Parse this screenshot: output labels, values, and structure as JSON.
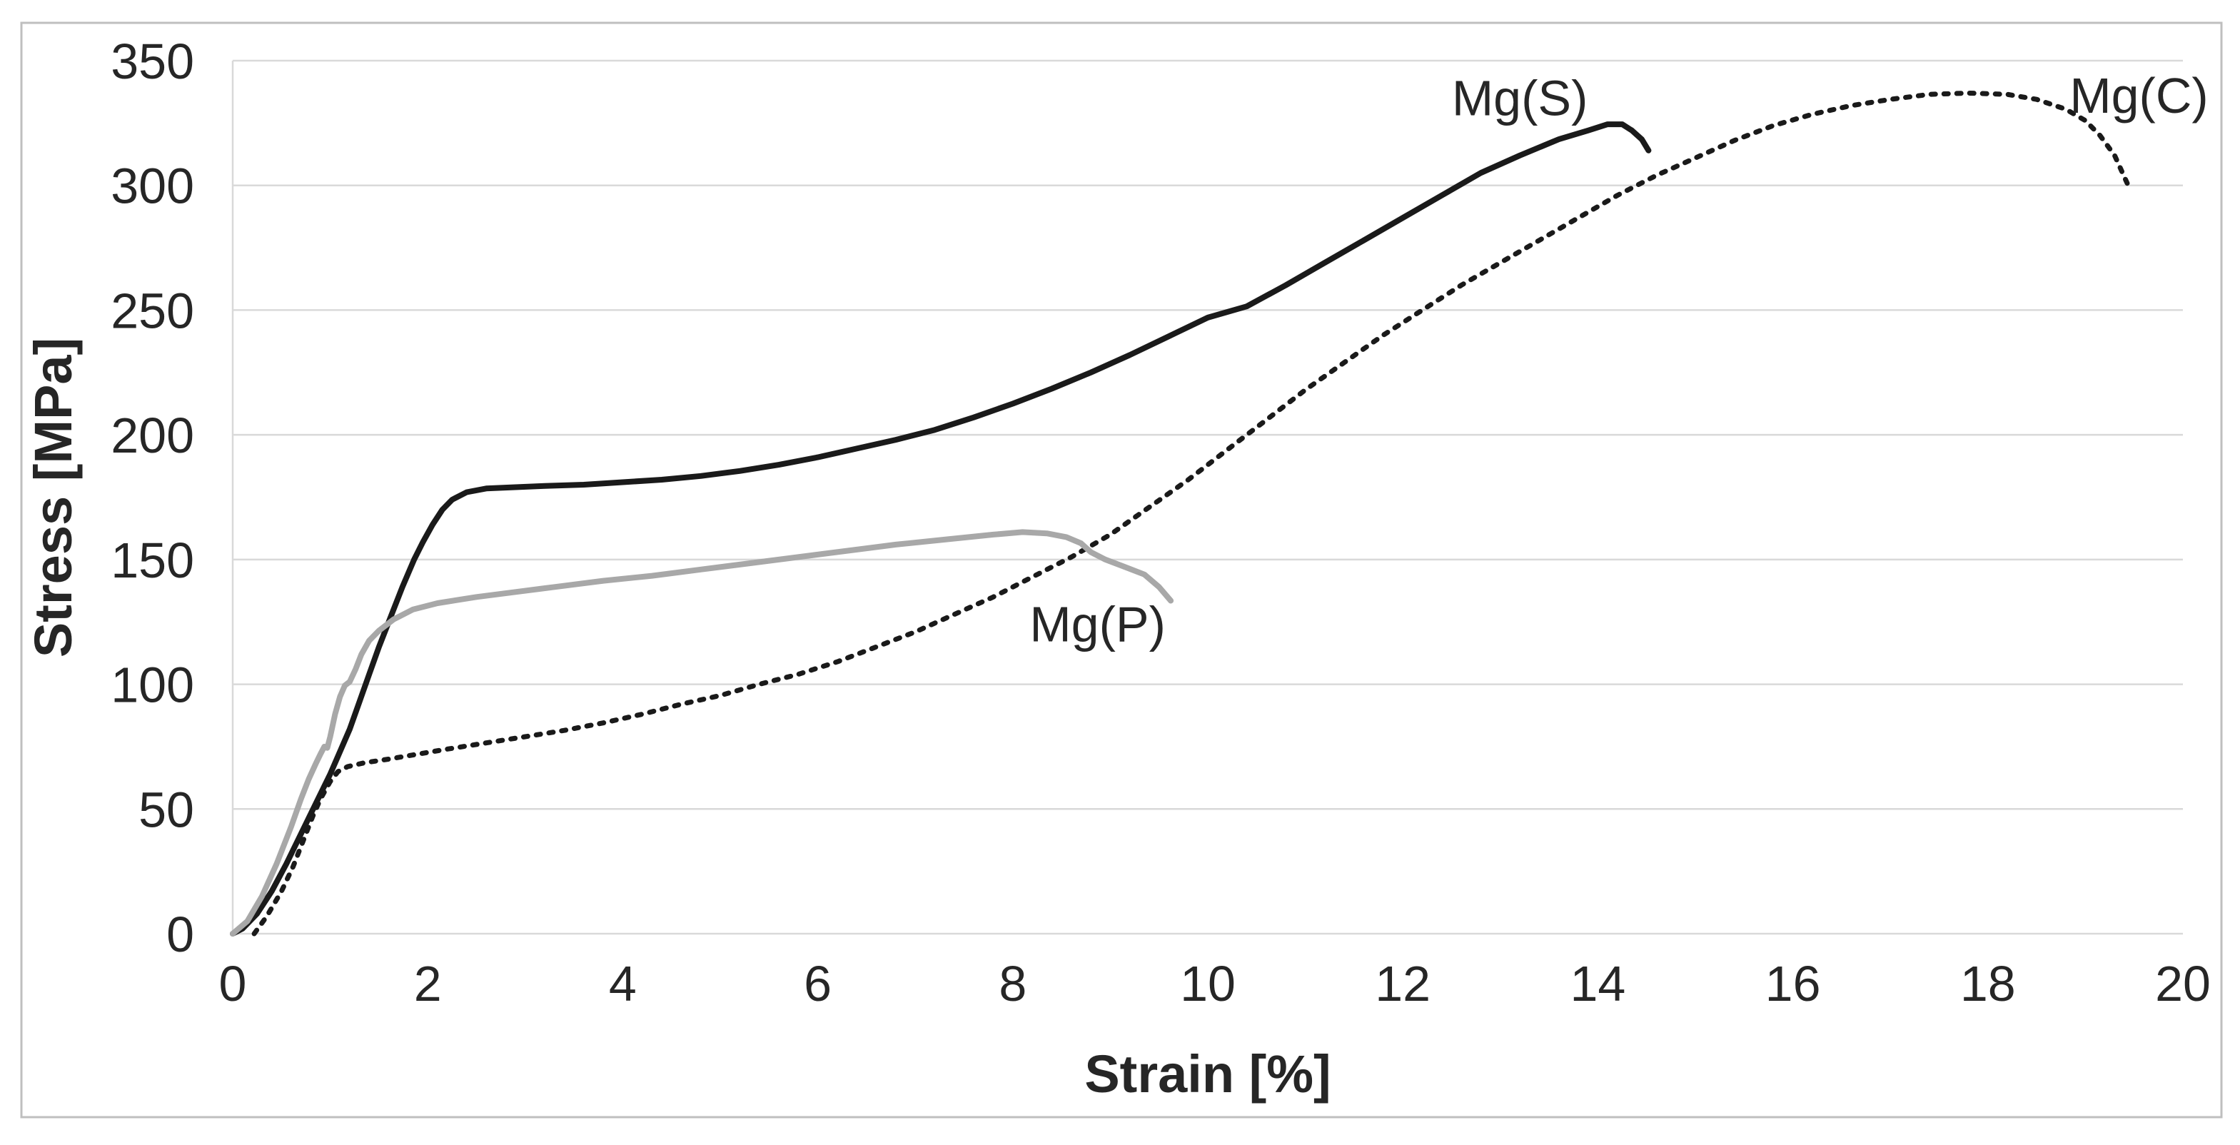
{
  "figure": {
    "background": "#ffffff",
    "border_color": "#bfbfbf",
    "gridline_color": "#d9d9d9",
    "text_color": "#262626"
  },
  "chart_data": {
    "type": "line",
    "title": "",
    "xlabel": "Strain [%]",
    "ylabel": "Stress [MPa]",
    "xlim": [
      0,
      20
    ],
    "ylim": [
      0,
      350
    ],
    "x_ticks": [
      0,
      2,
      4,
      6,
      8,
      10,
      12,
      14,
      16,
      18,
      20
    ],
    "y_ticks": [
      0,
      50,
      100,
      150,
      200,
      250,
      300,
      350
    ],
    "grid": "horizontal",
    "legend_position": "inline-labels",
    "series": [
      {
        "name": "Mg(S)",
        "style": "solid",
        "color": "#1a1a1a",
        "stroke_width": 8,
        "label_pos": [
          13.2,
          335
        ],
        "points": [
          [
            0,
            0
          ],
          [
            0.1,
            2
          ],
          [
            0.25,
            8
          ],
          [
            0.4,
            17
          ],
          [
            0.55,
            28
          ],
          [
            0.7,
            40
          ],
          [
            0.85,
            52
          ],
          [
            1.0,
            64
          ],
          [
            1.1,
            73
          ],
          [
            1.2,
            82
          ],
          [
            1.3,
            93
          ],
          [
            1.4,
            104
          ],
          [
            1.5,
            115
          ],
          [
            1.62,
            127
          ],
          [
            1.74,
            139
          ],
          [
            1.86,
            150
          ],
          [
            1.95,
            157
          ],
          [
            2.05,
            164
          ],
          [
            2.15,
            170
          ],
          [
            2.25,
            174
          ],
          [
            2.4,
            177
          ],
          [
            2.6,
            178.5
          ],
          [
            2.9,
            179
          ],
          [
            3.2,
            179.5
          ],
          [
            3.6,
            180
          ],
          [
            4.0,
            181
          ],
          [
            4.4,
            182
          ],
          [
            4.8,
            183.5
          ],
          [
            5.2,
            185.5
          ],
          [
            5.6,
            188
          ],
          [
            6.0,
            191
          ],
          [
            6.4,
            194.5
          ],
          [
            6.8,
            198
          ],
          [
            7.2,
            202
          ],
          [
            7.6,
            207
          ],
          [
            8.0,
            212.5
          ],
          [
            8.4,
            218.5
          ],
          [
            8.8,
            225
          ],
          [
            9.2,
            232
          ],
          [
            9.6,
            239.5
          ],
          [
            10.0,
            247
          ],
          [
            10.4,
            251.5
          ],
          [
            10.8,
            260
          ],
          [
            11.2,
            269
          ],
          [
            11.6,
            278
          ],
          [
            12.0,
            287
          ],
          [
            12.4,
            296
          ],
          [
            12.8,
            305
          ],
          [
            13.2,
            312
          ],
          [
            13.6,
            318.5
          ],
          [
            13.9,
            322
          ],
          [
            14.1,
            324.5
          ],
          [
            14.25,
            324.5
          ],
          [
            14.35,
            322
          ],
          [
            14.45,
            318.5
          ],
          [
            14.52,
            314
          ]
        ]
      },
      {
        "name": "Mg(C)",
        "style": "dotted",
        "color": "#1a1a1a",
        "stroke_width": 7,
        "label_pos": [
          19.55,
          336
        ],
        "points": [
          [
            0.22,
            0
          ],
          [
            0.35,
            7
          ],
          [
            0.5,
            17
          ],
          [
            0.62,
            27
          ],
          [
            0.72,
            37
          ],
          [
            0.82,
            47
          ],
          [
            0.9,
            54
          ],
          [
            1.0,
            61
          ],
          [
            1.08,
            65
          ],
          [
            1.18,
            67
          ],
          [
            1.35,
            68.5
          ],
          [
            1.6,
            70
          ],
          [
            1.9,
            72
          ],
          [
            2.2,
            74
          ],
          [
            2.6,
            76.5
          ],
          [
            3.0,
            79
          ],
          [
            3.4,
            81.5
          ],
          [
            3.8,
            84.5
          ],
          [
            4.2,
            88
          ],
          [
            4.6,
            92
          ],
          [
            5.0,
            95.5
          ],
          [
            5.4,
            100
          ],
          [
            5.8,
            104
          ],
          [
            6.2,
            109
          ],
          [
            6.6,
            115
          ],
          [
            7.0,
            121
          ],
          [
            7.4,
            128
          ],
          [
            7.8,
            135
          ],
          [
            8.2,
            143
          ],
          [
            8.6,
            151
          ],
          [
            9.0,
            160
          ],
          [
            9.4,
            171
          ],
          [
            9.8,
            182
          ],
          [
            10.2,
            194
          ],
          [
            10.6,
            206
          ],
          [
            11.0,
            218
          ],
          [
            11.4,
            229
          ],
          [
            11.8,
            240
          ],
          [
            12.2,
            250
          ],
          [
            12.6,
            260
          ],
          [
            13.0,
            269
          ],
          [
            13.4,
            278
          ],
          [
            13.8,
            287
          ],
          [
            14.2,
            296
          ],
          [
            14.6,
            304
          ],
          [
            15.0,
            311
          ],
          [
            15.4,
            318
          ],
          [
            15.8,
            324
          ],
          [
            16.2,
            328.5
          ],
          [
            16.6,
            332
          ],
          [
            17.0,
            334.5
          ],
          [
            17.4,
            336.5
          ],
          [
            17.8,
            337
          ],
          [
            18.2,
            336.5
          ],
          [
            18.5,
            334.5
          ],
          [
            18.8,
            330.5
          ],
          [
            19.0,
            326
          ],
          [
            19.15,
            320
          ],
          [
            19.3,
            312
          ],
          [
            19.45,
            299
          ]
        ]
      },
      {
        "name": "Mg(P)",
        "style": "solid",
        "color": "#a8a8a8",
        "stroke_width": 8,
        "label_pos": [
          8.87,
          124
        ],
        "points": [
          [
            0,
            0
          ],
          [
            0.15,
            5
          ],
          [
            0.3,
            15
          ],
          [
            0.45,
            28
          ],
          [
            0.6,
            43
          ],
          [
            0.7,
            54
          ],
          [
            0.78,
            62
          ],
          [
            0.85,
            68
          ],
          [
            0.9,
            72
          ],
          [
            0.94,
            75
          ],
          [
            0.97,
            74.5
          ],
          [
            1.0,
            79
          ],
          [
            1.05,
            88
          ],
          [
            1.1,
            95
          ],
          [
            1.15,
            99.5
          ],
          [
            1.2,
            101
          ],
          [
            1.26,
            106
          ],
          [
            1.32,
            112
          ],
          [
            1.4,
            117.5
          ],
          [
            1.5,
            121.5
          ],
          [
            1.65,
            126
          ],
          [
            1.85,
            130
          ],
          [
            2.1,
            132.5
          ],
          [
            2.5,
            135
          ],
          [
            2.9,
            137
          ],
          [
            3.3,
            139
          ],
          [
            3.8,
            141.5
          ],
          [
            4.3,
            143.5
          ],
          [
            4.8,
            146
          ],
          [
            5.3,
            148.5
          ],
          [
            5.8,
            151
          ],
          [
            6.3,
            153.5
          ],
          [
            6.8,
            156
          ],
          [
            7.3,
            158
          ],
          [
            7.8,
            160
          ],
          [
            8.1,
            161
          ],
          [
            8.35,
            160.5
          ],
          [
            8.55,
            159
          ],
          [
            8.7,
            156.5
          ],
          [
            8.8,
            153
          ],
          [
            8.95,
            150
          ],
          [
            9.15,
            147
          ],
          [
            9.35,
            144
          ],
          [
            9.5,
            139
          ],
          [
            9.62,
            133.5
          ]
        ]
      }
    ]
  }
}
